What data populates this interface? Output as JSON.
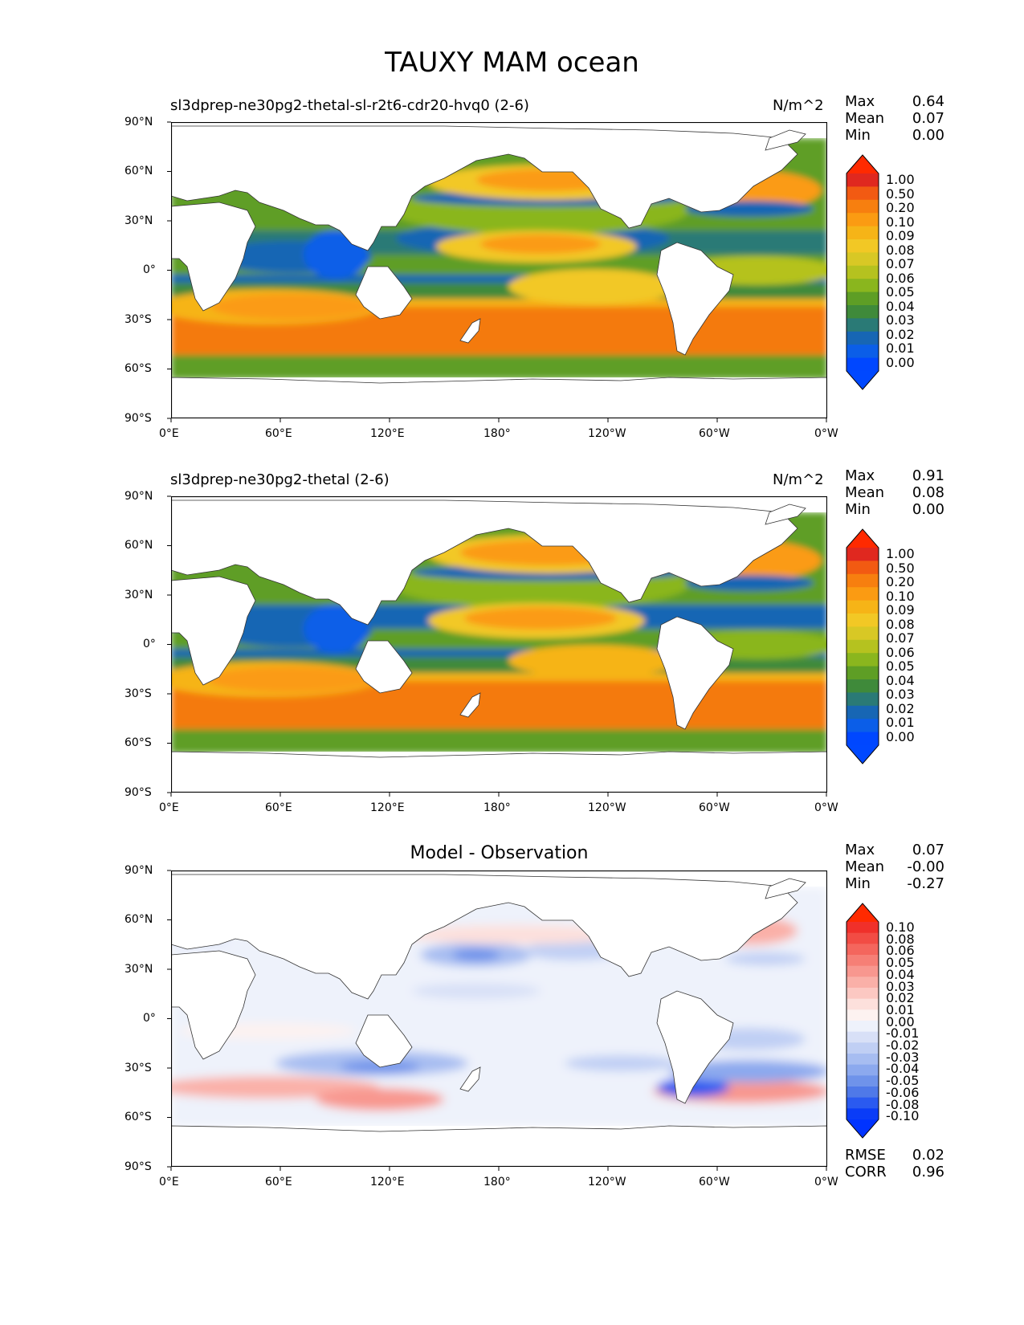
{
  "figure_title": "TAUXY MAM ocean",
  "xticks": [
    "0°E",
    "60°E",
    "120°E",
    "180°",
    "120°W",
    "60°W",
    "0°W"
  ],
  "yticks": [
    "90°N",
    "60°N",
    "30°N",
    "0°",
    "30°S",
    "60°S",
    "90°S"
  ],
  "panels": [
    {
      "title": "sl3dprep-ne30pg2-thetal-sl-r2t6-cdr20-hvq0 (2-6)",
      "units": "N/m^2",
      "stats": {
        "max_label": "Max",
        "max": "0.64",
        "mean_label": "Mean",
        "mean": "0.07",
        "min_label": "Min",
        "min": "0.00"
      },
      "colorbar_labels": [
        "1.00",
        "0.50",
        "0.20",
        "0.10",
        "0.09",
        "0.08",
        "0.07",
        "0.06",
        "0.05",
        "0.04",
        "0.03",
        "0.02",
        "0.01",
        "0.00"
      ],
      "colorbar_colors": [
        "#e0281f",
        "#f25a12",
        "#f77f0f",
        "#fb9b12",
        "#f6b417",
        "#f2c825",
        "#d8c825",
        "#b5c21f",
        "#8ab61e",
        "#5e9e25",
        "#3f8a3a",
        "#2a7a76",
        "#1766b4",
        "#0b5ee8",
        "#0047ff"
      ],
      "over_color": "#ff2a00",
      "under_color": "#0048ff"
    },
    {
      "title": "sl3dprep-ne30pg2-thetal (2-6)",
      "units": "N/m^2",
      "stats": {
        "max_label": "Max",
        "max": "0.91",
        "mean_label": "Mean",
        "mean": "0.08",
        "min_label": "Min",
        "min": "0.00"
      },
      "colorbar_labels": [
        "1.00",
        "0.50",
        "0.20",
        "0.10",
        "0.09",
        "0.08",
        "0.07",
        "0.06",
        "0.05",
        "0.04",
        "0.03",
        "0.02",
        "0.01",
        "0.00"
      ],
      "colorbar_colors": [
        "#e0281f",
        "#f25a12",
        "#f77f0f",
        "#fb9b12",
        "#f6b417",
        "#f2c825",
        "#d8c825",
        "#b5c21f",
        "#8ab61e",
        "#5e9e25",
        "#3f8a3a",
        "#2a7a76",
        "#1766b4",
        "#0b5ee8",
        "#0047ff"
      ],
      "over_color": "#ff2a00",
      "under_color": "#0048ff"
    },
    {
      "title": "Model - Observation",
      "units": "",
      "stats": {
        "max_label": "Max",
        "max": "0.07",
        "mean_label": "Mean",
        "mean": "-0.00",
        "min_label": "Min",
        "min": "-0.27"
      },
      "colorbar_labels": [
        "0.10",
        "0.08",
        "0.06",
        "0.05",
        "0.04",
        "0.03",
        "0.02",
        "0.01",
        "0.00",
        "-0.01",
        "-0.02",
        "-0.03",
        "-0.04",
        "-0.05",
        "-0.06",
        "-0.08",
        "-0.10"
      ],
      "colorbar_colors": [
        "#f0302a",
        "#f24c44",
        "#f4665d",
        "#f67f76",
        "#f8978f",
        "#fab0a8",
        "#fcc8c2",
        "#fde0dc",
        "#fdf2f0",
        "#eef2fb",
        "#d8e0f7",
        "#c0cff4",
        "#a7bdf1",
        "#8ca9ee",
        "#6f93ea",
        "#4f79e8",
        "#2a5af0",
        "#0a3cf7"
      ],
      "over_color": "#ff2a00",
      "under_color": "#0033ff",
      "bottom_stats": {
        "rmse_label": "RMSE",
        "rmse": "0.02",
        "corr_label": "CORR",
        "corr": "0.96"
      }
    }
  ]
}
